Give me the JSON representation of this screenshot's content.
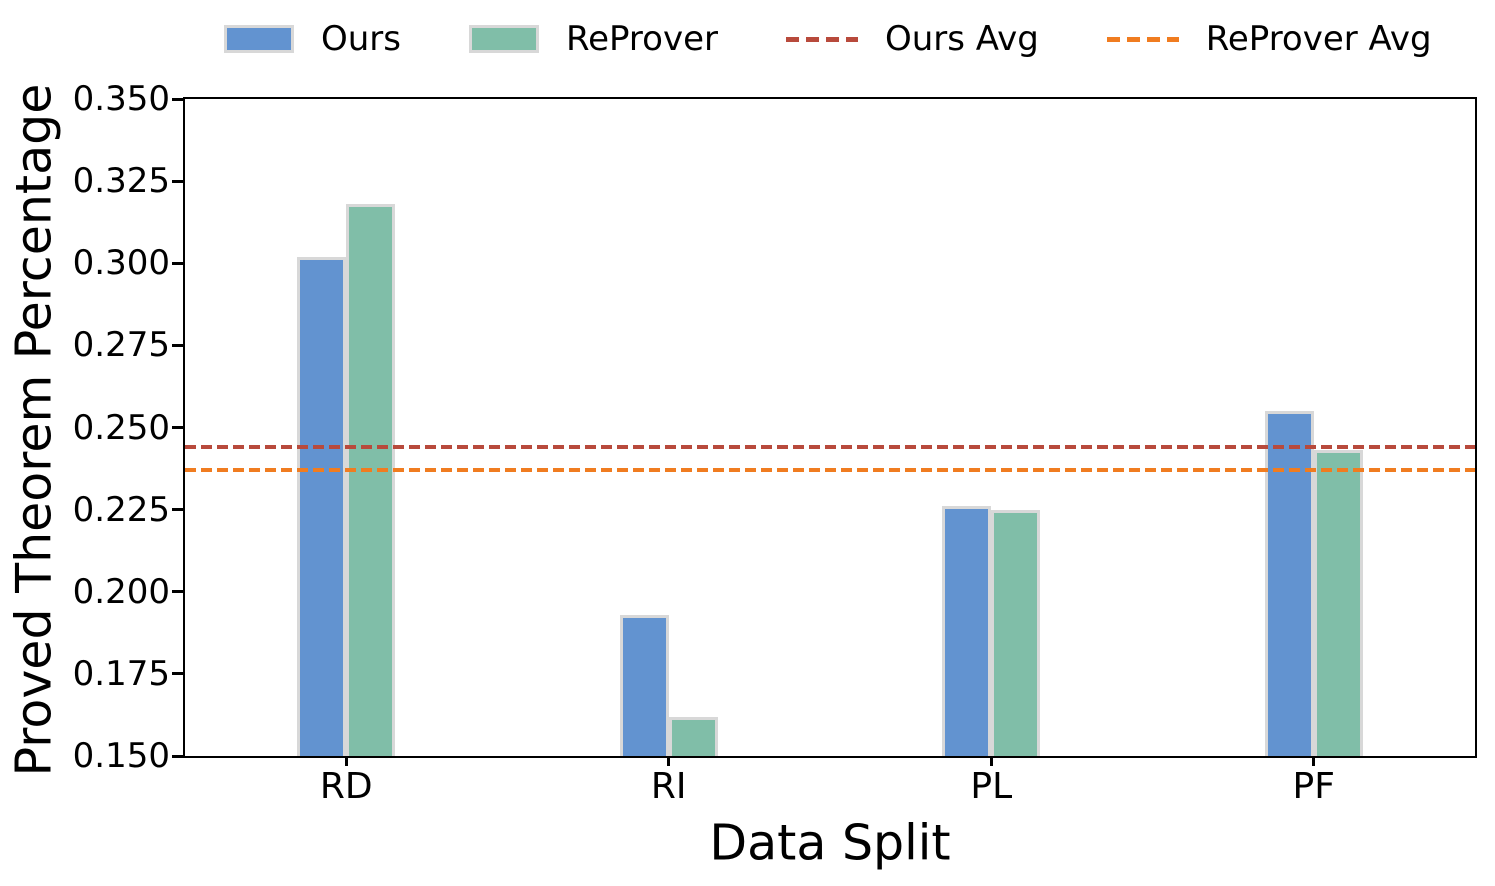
{
  "chart_data": {
    "type": "bar",
    "title": "",
    "xlabel": "Data Split",
    "ylabel": "Proved Theorem Percentage",
    "categories": [
      "RD",
      "RI",
      "PL",
      "PF"
    ],
    "series": [
      {
        "name": "Ours",
        "color": "#6293d0",
        "values": [
          0.302,
          0.193,
          0.226,
          0.255
        ]
      },
      {
        "name": "ReProver",
        "color": "#80bea8",
        "values": [
          0.318,
          0.162,
          0.225,
          0.243
        ]
      }
    ],
    "avg_lines": [
      {
        "name": "Ours Avg",
        "color": "#b84a3c",
        "value": 0.244
      },
      {
        "name": "ReProver Avg",
        "color": "#f07c20",
        "value": 0.237
      }
    ],
    "ylim": [
      0.15,
      0.35
    ],
    "ytick_step": 0.025,
    "ytick_labels": [
      "0.150",
      "0.175",
      "0.200",
      "0.225",
      "0.250",
      "0.275",
      "0.300",
      "0.325",
      "0.350"
    ],
    "bar_edge_color": "#d8d8d8",
    "grid": false,
    "legend_position": "top",
    "legend_frame": false
  }
}
